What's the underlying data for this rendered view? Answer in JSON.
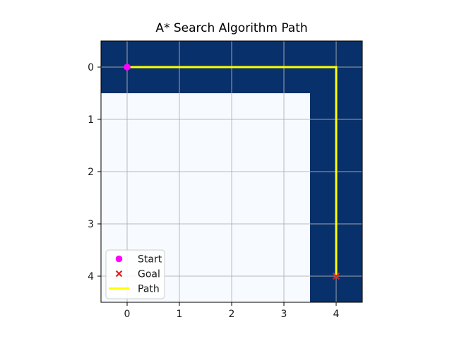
{
  "chart_data": {
    "type": "heatmap",
    "title": "A* Search Algorithm Path",
    "grid": {
      "rows": 5,
      "cols": 5,
      "cells": [
        [
          1,
          1,
          1,
          1,
          1
        ],
        [
          0,
          0,
          0,
          0,
          1
        ],
        [
          0,
          0,
          0,
          0,
          1
        ],
        [
          0,
          0,
          0,
          0,
          1
        ],
        [
          0,
          0,
          0,
          0,
          1
        ]
      ]
    },
    "x_ticks": [
      "0",
      "1",
      "2",
      "3",
      "4"
    ],
    "y_ticks": [
      "0",
      "1",
      "2",
      "3",
      "4"
    ],
    "xlim": [
      -0.5,
      4.5
    ],
    "ylim": [
      4.5,
      -0.5
    ],
    "y_axis_inverted": true,
    "grid_lines": true,
    "path_points": [
      [
        0,
        0
      ],
      [
        1,
        0
      ],
      [
        2,
        0
      ],
      [
        3,
        0
      ],
      [
        4,
        0
      ],
      [
        4,
        1
      ],
      [
        4,
        2
      ],
      [
        4,
        3
      ],
      [
        4,
        4
      ]
    ],
    "start_point": [
      0,
      0
    ],
    "goal_point": [
      4,
      4
    ],
    "legend": {
      "position": "lower left",
      "entries": [
        {
          "label": "Start",
          "marker": "circle",
          "color": "#ff00ff"
        },
        {
          "label": "Goal",
          "marker": "x",
          "color": "#e32222"
        },
        {
          "label": "Path",
          "marker": "line",
          "color": "#ffff00"
        }
      ]
    },
    "colors": {
      "cell_on": "#08306b",
      "cell_off": "#f7fbff",
      "grid_line": "#b0b0b0",
      "path": "#ffff00",
      "start": "#ff00ff",
      "goal": "#e32222",
      "spine": "#000000",
      "figure_background": "#ffffff"
    }
  }
}
